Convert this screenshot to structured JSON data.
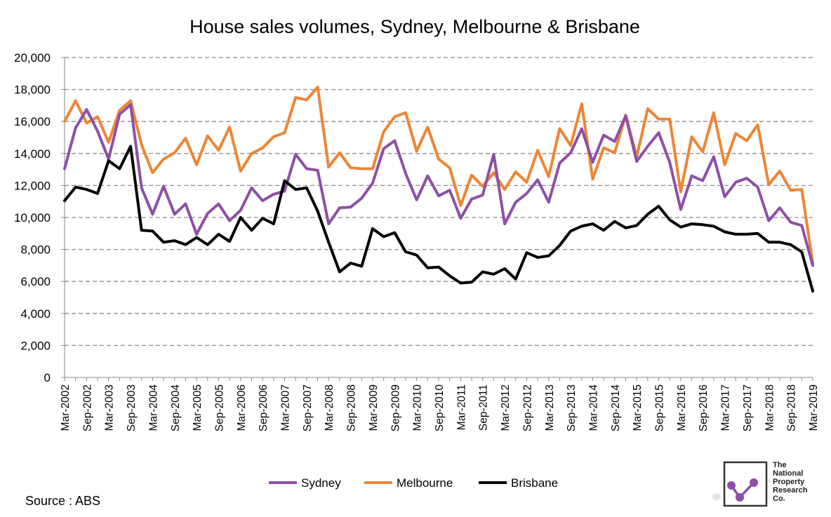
{
  "chart_data": {
    "type": "line",
    "title": "House sales volumes, Sydney, Melbourne & Brisbane",
    "xlabel": "",
    "ylabel": "",
    "ylim": [
      0,
      20000
    ],
    "yticks": [
      0,
      2000,
      4000,
      6000,
      8000,
      10000,
      12000,
      14000,
      16000,
      18000,
      20000
    ],
    "ytick_labels": [
      "0",
      "2,000",
      "4,000",
      "6,000",
      "8,000",
      "10,000",
      "12,000",
      "14,000",
      "16,000",
      "18,000",
      "20,000"
    ],
    "grid": "horizontal dashed",
    "legend_position": "bottom",
    "x_start": "Mar-2002",
    "x_end": "Mar-2019",
    "x_frequency": "quarterly",
    "x_tick_labels": [
      "Mar-2002",
      "Sep-2002",
      "Mar-2003",
      "Sep-2003",
      "Mar-2004",
      "Sep-2004",
      "Mar-2005",
      "Sep-2005",
      "Mar-2006",
      "Sep-2006",
      "Mar-2007",
      "Sep-2007",
      "Mar-2008",
      "Sep-2008",
      "Mar-2009",
      "Sep-2009",
      "Mar-2010",
      "Sep-2010",
      "Mar-2011",
      "Sep-2011",
      "Mar-2012",
      "Sep-2012",
      "Mar-2013",
      "Sep-2013",
      "Mar-2014",
      "Sep-2014",
      "Mar-2015",
      "Sep-2015",
      "Mar-2016",
      "Sep-2016",
      "Mar-2017",
      "Sep-2017",
      "Mar-2018",
      "Sep-2018",
      "Mar-2019"
    ],
    "series": [
      {
        "name": "Sydney",
        "color": "#8e4fa6",
        "values": [
          13050,
          15600,
          16750,
          15400,
          13650,
          16450,
          17050,
          11850,
          10200,
          11950,
          10200,
          10850,
          8950,
          10250,
          10850,
          9800,
          10450,
          11850,
          11050,
          11450,
          11650,
          13950,
          13050,
          12950,
          9600,
          10600,
          10650,
          11200,
          12150,
          14300,
          14800,
          12750,
          11100,
          12600,
          11350,
          11700,
          9950,
          11150,
          11400,
          13950,
          9600,
          10950,
          11500,
          12350,
          10950,
          13400,
          14050,
          15550,
          13450,
          15150,
          14750,
          16350,
          13500,
          14450,
          15300,
          13450,
          10500,
          12600,
          12300,
          13800,
          11300,
          12200,
          12450,
          11900,
          9800,
          10600,
          9700,
          9500,
          7000
        ]
      },
      {
        "name": "Melbourne",
        "color": "#ed8535",
        "values": [
          16000,
          17300,
          15900,
          16300,
          14700,
          16700,
          17300,
          14550,
          12800,
          13650,
          14050,
          14950,
          13300,
          15100,
          14200,
          15650,
          12900,
          14000,
          14350,
          15050,
          15300,
          17500,
          17350,
          18150,
          13150,
          14050,
          13100,
          13050,
          13050,
          15350,
          16300,
          16550,
          14150,
          15650,
          13650,
          13100,
          10750,
          12650,
          11950,
          12800,
          11750,
          12850,
          12200,
          14200,
          12550,
          15550,
          14500,
          17100,
          12400,
          14350,
          14050,
          16400,
          13800,
          16800,
          16150,
          16150,
          11600,
          15050,
          14100,
          16550,
          13300,
          15250,
          14800,
          15800,
          12050,
          12900,
          11700,
          11750,
          7150
        ]
      },
      {
        "name": "Brisbane",
        "color": "#000000",
        "values": [
          11050,
          11900,
          11750,
          11500,
          13550,
          13050,
          14450,
          9200,
          9150,
          8450,
          8550,
          8300,
          8750,
          8300,
          8950,
          8500,
          10000,
          9200,
          9950,
          9600,
          12300,
          11750,
          11850,
          10400,
          8450,
          6600,
          7150,
          6950,
          9300,
          8800,
          9050,
          7850,
          7650,
          6850,
          6900,
          6350,
          5900,
          5950,
          6600,
          6450,
          6800,
          6150,
          7800,
          7500,
          7600,
          8250,
          9150,
          9450,
          9600,
          9200,
          9750,
          9350,
          9500,
          10200,
          10700,
          9850,
          9400,
          9600,
          9550,
          9450,
          9100,
          8950,
          8950,
          9000,
          8450,
          8450,
          8300,
          7850,
          5400
        ]
      }
    ],
    "source": "Source : ABS",
    "logo": {
      "line1": "The",
      "line2": "National",
      "line3": "Property",
      "line4": "Research",
      "line5": "Co.",
      "color": "#8e4fa6"
    }
  }
}
